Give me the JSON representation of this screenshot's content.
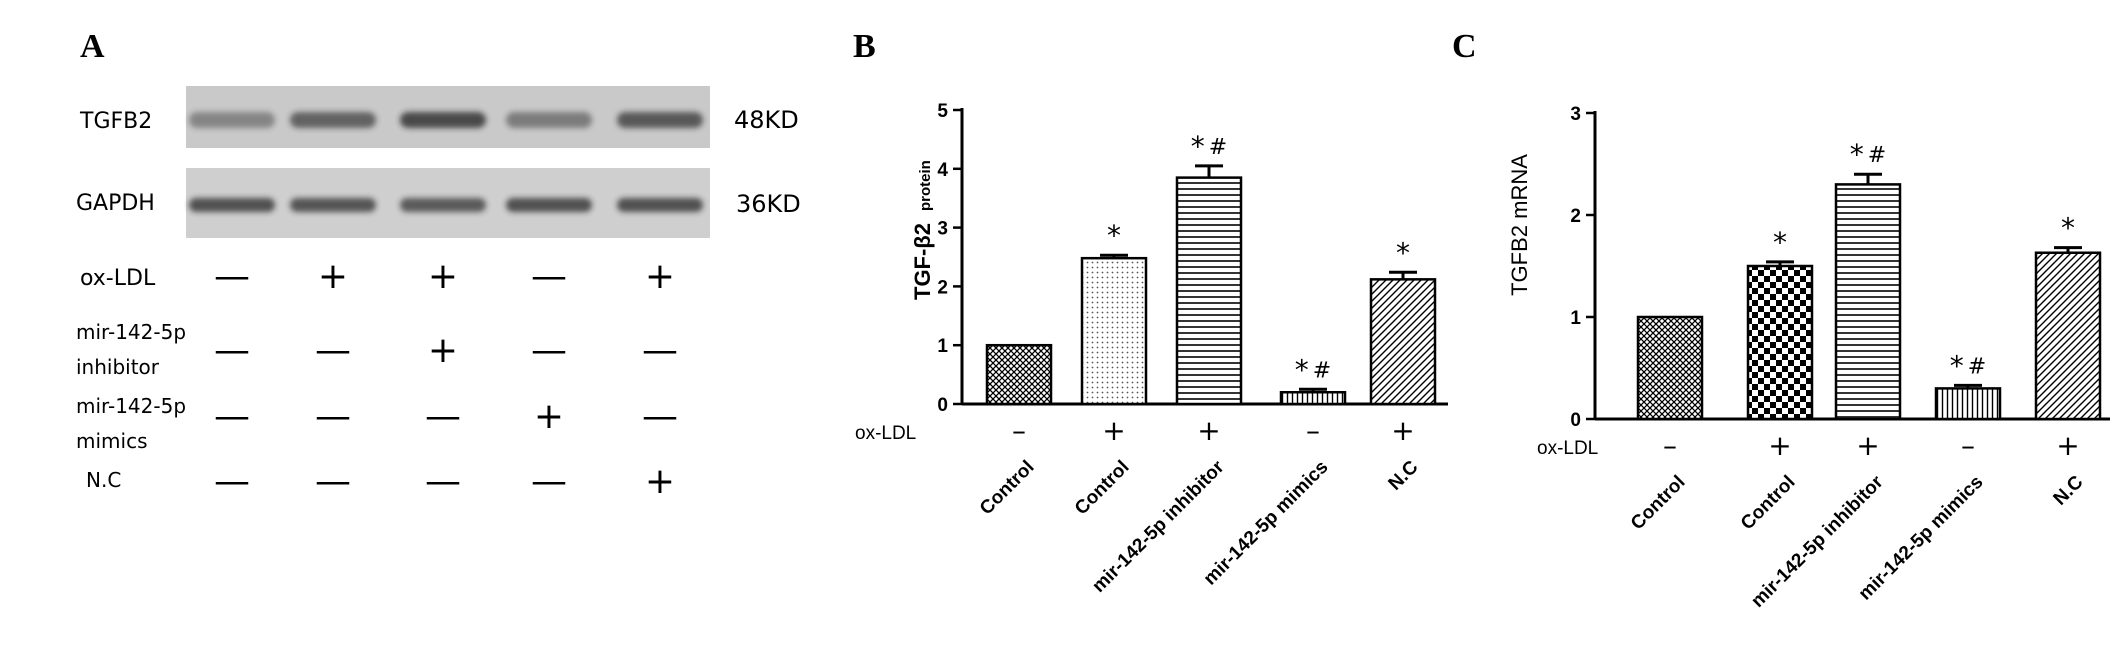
{
  "panels": [
    "A",
    "B",
    "C"
  ],
  "blot": {
    "proteins": [
      {
        "name": "TGFB2",
        "size": "48KD"
      },
      {
        "name": "GAPDH",
        "size": "36KD"
      }
    ],
    "conditions": [
      {
        "label": "ox-LDL",
        "label2": "",
        "signs": [
          "—",
          "+",
          "+",
          "—",
          "+"
        ]
      },
      {
        "label": "mir-142-5p",
        "label2": "inhibitor",
        "signs": [
          "—",
          "—",
          "+",
          "—",
          "—"
        ]
      },
      {
        "label": "mir-142-5p",
        "label2": "mimics",
        "signs": [
          "—",
          "—",
          "—",
          "+",
          "—"
        ]
      },
      {
        "label": "N.C",
        "label2": "",
        "signs": [
          "—",
          "—",
          "—",
          "—",
          "+"
        ]
      }
    ],
    "tgfb2_band_intensity": [
      0.25,
      0.6,
      0.85,
      0.35,
      0.7
    ],
    "gapdh_band_intensity": [
      0.8,
      0.75,
      0.7,
      0.8,
      0.8
    ]
  },
  "colors": {
    "blot_bg": "#c9c9c9",
    "band": "#333333",
    "bar_edge": "#000000"
  },
  "chart_data": [
    {
      "type": "bar",
      "title": "",
      "ylabel": "TGF-β2",
      "ylabel_suffix": "protein",
      "ylim": [
        0,
        5
      ],
      "yticks": [
        0,
        1,
        2,
        3,
        4,
        5
      ],
      "categories": [
        "Control",
        "Control",
        "mir-142-5p inhibitor",
        "mir-142-5p mimics",
        "N.C"
      ],
      "values": [
        1.0,
        2.48,
        3.85,
        0.2,
        2.12
      ],
      "errors": [
        0,
        0.05,
        0.2,
        0.05,
        0.12
      ],
      "oxldl_label": "ox-LDL",
      "oxldl": [
        "-",
        "+",
        "+",
        "-",
        "+"
      ],
      "annotations": [
        "",
        "*",
        "*#",
        "*#",
        "*"
      ],
      "patterns": [
        "cross",
        "dots",
        "hlines",
        "vlines",
        "diag"
      ]
    },
    {
      "type": "bar",
      "title": "",
      "ylabel": "TGFB2 mRNA",
      "ylim": [
        0,
        3
      ],
      "yticks": [
        0,
        1,
        2,
        3
      ],
      "categories": [
        "Control",
        "Control",
        "mir-142-5p inhibitor",
        "mir-142-5p mimics",
        "N.C"
      ],
      "values": [
        1.0,
        1.5,
        2.3,
        0.3,
        1.63
      ],
      "errors": [
        0,
        0.04,
        0.1,
        0.03,
        0.05
      ],
      "oxldl_label": "ox-LDL",
      "oxldl": [
        "-",
        "+",
        "+",
        "-",
        "+"
      ],
      "annotations": [
        "",
        "*",
        "*#",
        "*#",
        "*"
      ],
      "patterns": [
        "cross",
        "check",
        "hlines",
        "vlines",
        "diag"
      ]
    }
  ]
}
